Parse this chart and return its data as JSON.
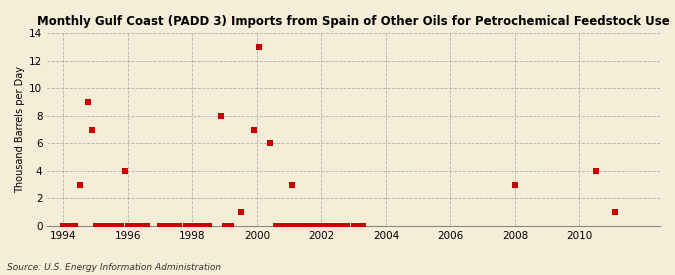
{
  "title": "Monthly Gulf Coast (PADD 3) Imports from Spain of Other Oils for Petrochemical Feedstock Use",
  "ylabel": "Thousand Barrels per Day",
  "source": "Source: U.S. Energy Information Administration",
  "background_color": "#f5edd8",
  "plot_bg_color": "#f5edd8",
  "scatter_color": "#cc0000",
  "marker": "s",
  "marker_size": 16,
  "xlim": [
    1993.5,
    2012.5
  ],
  "ylim": [
    0,
    14
  ],
  "xticks": [
    1994,
    1996,
    1998,
    2000,
    2002,
    2004,
    2006,
    2008,
    2010
  ],
  "yticks": [
    0,
    2,
    4,
    6,
    8,
    10,
    12,
    14
  ],
  "data_x": [
    1994.5,
    1994.75,
    1994.9,
    1995.9,
    1998.9,
    1999.5,
    1999.9,
    2000.05,
    2000.4,
    2001.1,
    1994.0,
    1994.1,
    1994.15,
    1994.2,
    1994.25,
    1994.3,
    1994.35,
    1995.0,
    1995.1,
    1995.15,
    1995.2,
    1995.3,
    1995.4,
    1995.5,
    1995.6,
    1995.7,
    1995.8,
    1996.0,
    1996.1,
    1996.2,
    1996.3,
    1996.4,
    1996.5,
    1996.6,
    1997.0,
    1997.1,
    1997.2,
    1997.4,
    1997.6,
    1997.8,
    1998.0,
    1998.1,
    1998.2,
    1998.3,
    1998.4,
    1998.5,
    1999.0,
    1999.1,
    1999.2,
    2000.6,
    2000.7,
    2000.75,
    2000.8,
    2000.85,
    2000.9,
    2000.95,
    2001.0,
    2001.05,
    2001.1,
    2001.2,
    2001.3,
    2001.4,
    2001.5,
    2001.6,
    2001.7,
    2001.8,
    2001.9,
    2002.0,
    2002.1,
    2002.2,
    2002.3,
    2002.4,
    2002.5,
    2002.6,
    2002.7,
    2002.8,
    2003.0,
    2003.1,
    2003.2,
    2003.3,
    2008.0,
    2010.5,
    2011.1
  ],
  "data_y": [
    3,
    9,
    7,
    4,
    8,
    1,
    7,
    13,
    6,
    3,
    0,
    0,
    0,
    0,
    0,
    0,
    0,
    0,
    0,
    0,
    0,
    0,
    0,
    0,
    0,
    0,
    0,
    0,
    0,
    0,
    0,
    0,
    0,
    0,
    0,
    0,
    0,
    0,
    0,
    0,
    0,
    0,
    0,
    0,
    0,
    0,
    0,
    0,
    0,
    0,
    0,
    0,
    0,
    0,
    0,
    0,
    0,
    0,
    0,
    0,
    0,
    0,
    0,
    0,
    0,
    0,
    0,
    0,
    0,
    0,
    0,
    0,
    0,
    0,
    0,
    0,
    0,
    0,
    0,
    0,
    3,
    4,
    1
  ]
}
